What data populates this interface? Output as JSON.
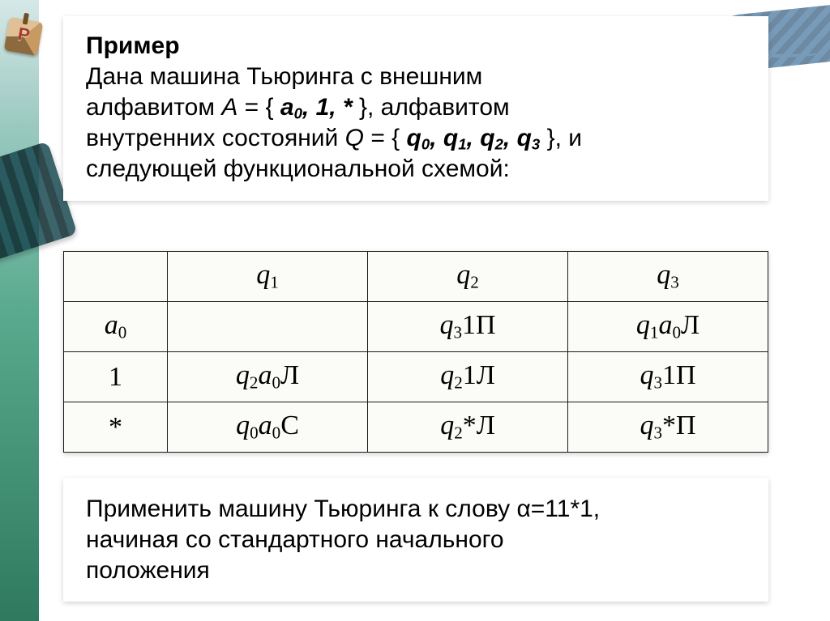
{
  "intro": {
    "title": "Пример",
    "line1_prefix": "Дана машина Тьюринга с внешним",
    "line2_word_alphabet": "алфавитом ",
    "alphabet_A_lhs": "A",
    "alphabet_A_eq": " = {",
    "alphabet_A_members": "a₀, 1, *",
    "alphabet_A_close": " }, ",
    "line2_word_alphabet2": "алфавитом",
    "line3_prefix": "внутренних состояний ",
    "alphabet_Q_lhs": "Q",
    "alphabet_Q_eq": " = {",
    "alphabet_Q_members": "q₀, q₁, q₂, q₃",
    "alphabet_Q_close": "}, ",
    "line3_suffix": "и",
    "line4": "следующей функциональной схемой:"
  },
  "table": {
    "columns": [
      "",
      "q₁",
      "q₂",
      "q₃"
    ],
    "rows": [
      {
        "sym": "a₀",
        "cells": [
          "",
          "q₃1П",
          "q₁a₀Л"
        ]
      },
      {
        "sym": "1",
        "cells": [
          "q₂a₀Л",
          "q₂1Л",
          "q₃1П"
        ]
      },
      {
        "sym": "*",
        "cells": [
          "q₀a₀С",
          "q₂*Л",
          "q₃*П"
        ]
      }
    ]
  },
  "outro": {
    "line1_a": "Применить машину Тьюринга к слову ",
    "alpha": "α",
    "line1_b": "=11*1,",
    "line2": "начиная со стандартного начального",
    "line3": "положения"
  },
  "style": {
    "col_sym_width": 128,
    "col_q_width": 247
  }
}
